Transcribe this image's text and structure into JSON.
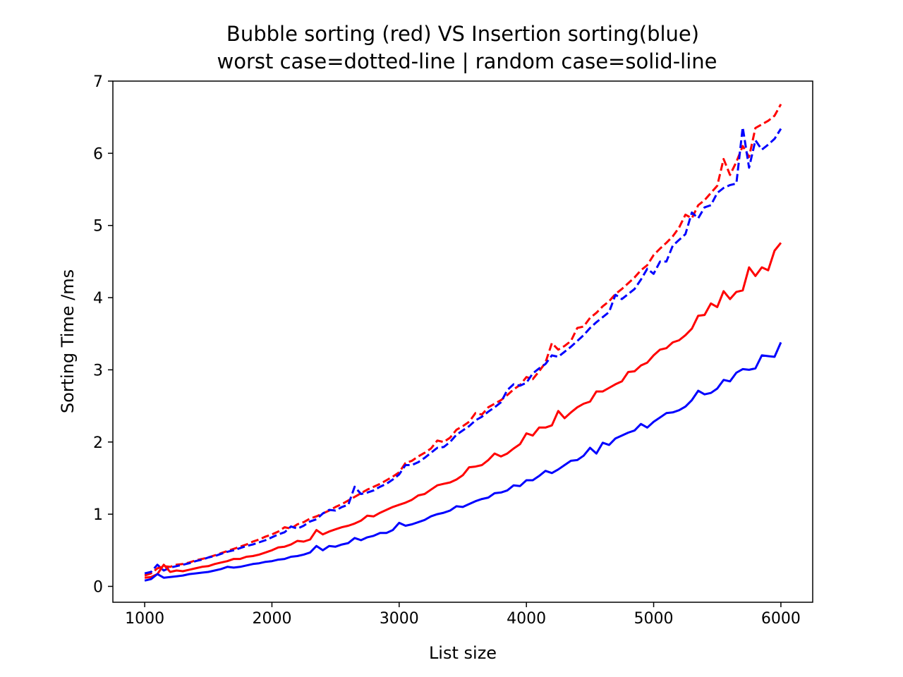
{
  "chart_data": {
    "type": "line",
    "title": "Bubble sorting (red) VS Insertion sorting(blue)",
    "subtitle": "worst case=dotted-line | random case=solid-line",
    "xlabel": "List size",
    "ylabel": "Sorting Time /ms",
    "xlim": [
      750,
      6250
    ],
    "ylim": [
      -0.22,
      7
    ],
    "xticks": [
      1000,
      2000,
      3000,
      4000,
      5000,
      6000
    ],
    "yticks": [
      0,
      1,
      2,
      3,
      4,
      5,
      6,
      7
    ],
    "xtick_labels": [
      "1000",
      "2000",
      "3000",
      "4000",
      "5000",
      "6000"
    ],
    "ytick_labels": [
      "0",
      "1",
      "2",
      "3",
      "4",
      "5",
      "6",
      "7"
    ],
    "grid": false,
    "legend": "none",
    "x": [
      1000,
      1050,
      1100,
      1150,
      1200,
      1250,
      1300,
      1350,
      1400,
      1450,
      1500,
      1550,
      1600,
      1650,
      1700,
      1750,
      1800,
      1850,
      1900,
      1950,
      2000,
      2050,
      2100,
      2150,
      2200,
      2250,
      2300,
      2350,
      2400,
      2450,
      2500,
      2550,
      2600,
      2650,
      2700,
      2750,
      2800,
      2850,
      2900,
      2950,
      3000,
      3050,
      3100,
      3150,
      3200,
      3250,
      3300,
      3350,
      3400,
      3450,
      3500,
      3550,
      3600,
      3650,
      3700,
      3750,
      3800,
      3850,
      3900,
      3950,
      4000,
      4050,
      4100,
      4150,
      4200,
      4250,
      4300,
      4350,
      4400,
      4450,
      4500,
      4550,
      4600,
      4650,
      4700,
      4750,
      4800,
      4850,
      4900,
      4950,
      5000,
      5050,
      5100,
      5150,
      5200,
      5250,
      5300,
      5350,
      5400,
      5450,
      5500,
      5550,
      5600,
      5650,
      5700,
      5750,
      5800,
      5850,
      5900,
      5950,
      6000
    ],
    "series": [
      {
        "color": "#ff0000",
        "linestyle": "dashed",
        "values": [
          0.15,
          0.18,
          0.25,
          0.28,
          0.27,
          0.3,
          0.31,
          0.33,
          0.36,
          0.38,
          0.4,
          0.43,
          0.46,
          0.49,
          0.52,
          0.55,
          0.58,
          0.62,
          0.65,
          0.69,
          0.72,
          0.76,
          0.82,
          0.8,
          0.86,
          0.89,
          0.94,
          0.97,
          1.01,
          1.05,
          1.1,
          1.14,
          1.19,
          1.24,
          1.29,
          1.34,
          1.38,
          1.42,
          1.47,
          1.52,
          1.58,
          1.71,
          1.74,
          1.8,
          1.85,
          1.91,
          2.02,
          2.0,
          2.06,
          2.17,
          2.22,
          2.28,
          2.4,
          2.38,
          2.48,
          2.53,
          2.58,
          2.65,
          2.73,
          2.79,
          2.9,
          2.87,
          2.98,
          3.1,
          3.37,
          3.28,
          3.33,
          3.4,
          3.58,
          3.6,
          3.72,
          3.79,
          3.88,
          3.95,
          4.05,
          4.12,
          4.2,
          4.28,
          4.38,
          4.45,
          4.59,
          4.68,
          4.76,
          4.85,
          4.97,
          5.15,
          5.1,
          5.28,
          5.35,
          5.45,
          5.55,
          5.92,
          5.7,
          5.88,
          6.1,
          5.95,
          6.35,
          6.4,
          6.45,
          6.52,
          6.68
        ]
      },
      {
        "color": "#0000ff",
        "linestyle": "dashed",
        "values": [
          0.18,
          0.2,
          0.3,
          0.22,
          0.26,
          0.28,
          0.3,
          0.32,
          0.35,
          0.37,
          0.4,
          0.42,
          0.45,
          0.48,
          0.5,
          0.53,
          0.56,
          0.58,
          0.61,
          0.64,
          0.68,
          0.72,
          0.75,
          0.83,
          0.8,
          0.84,
          0.9,
          0.93,
          1.01,
          1.06,
          1.05,
          1.1,
          1.13,
          1.38,
          1.28,
          1.3,
          1.33,
          1.38,
          1.42,
          1.48,
          1.55,
          1.68,
          1.68,
          1.72,
          1.78,
          1.85,
          1.92,
          1.93,
          2.0,
          2.1,
          2.16,
          2.22,
          2.3,
          2.35,
          2.42,
          2.48,
          2.55,
          2.72,
          2.8,
          2.78,
          2.82,
          2.95,
          3.02,
          3.08,
          3.2,
          3.18,
          3.25,
          3.32,
          3.4,
          3.48,
          3.58,
          3.66,
          3.73,
          3.8,
          4.04,
          3.98,
          4.05,
          4.12,
          4.25,
          4.4,
          4.33,
          4.5,
          4.5,
          4.72,
          4.8,
          4.88,
          5.18,
          5.1,
          5.25,
          5.28,
          5.45,
          5.52,
          5.56,
          5.58,
          6.36,
          5.8,
          6.18,
          6.05,
          6.12,
          6.2,
          6.34
        ]
      },
      {
        "color": "#ff0000",
        "linestyle": "solid",
        "values": [
          0.12,
          0.13,
          0.17,
          0.3,
          0.2,
          0.22,
          0.21,
          0.23,
          0.25,
          0.27,
          0.28,
          0.31,
          0.33,
          0.35,
          0.38,
          0.38,
          0.41,
          0.42,
          0.44,
          0.47,
          0.5,
          0.54,
          0.55,
          0.58,
          0.63,
          0.62,
          0.65,
          0.78,
          0.72,
          0.76,
          0.79,
          0.82,
          0.84,
          0.87,
          0.91,
          0.98,
          0.97,
          1.02,
          1.06,
          1.1,
          1.13,
          1.16,
          1.2,
          1.26,
          1.28,
          1.34,
          1.4,
          1.42,
          1.44,
          1.48,
          1.54,
          1.65,
          1.66,
          1.68,
          1.75,
          1.84,
          1.8,
          1.84,
          1.91,
          1.97,
          2.12,
          2.09,
          2.2,
          2.2,
          2.23,
          2.43,
          2.33,
          2.41,
          2.48,
          2.53,
          2.56,
          2.7,
          2.7,
          2.75,
          2.8,
          2.84,
          2.97,
          2.98,
          3.06,
          3.1,
          3.2,
          3.28,
          3.3,
          3.38,
          3.41,
          3.48,
          3.57,
          3.75,
          3.76,
          3.92,
          3.87,
          4.09,
          3.98,
          4.08,
          4.1,
          4.42,
          4.3,
          4.42,
          4.38,
          4.65,
          4.76
        ]
      },
      {
        "color": "#0000ff",
        "linestyle": "solid",
        "values": [
          0.08,
          0.1,
          0.17,
          0.12,
          0.13,
          0.14,
          0.15,
          0.17,
          0.18,
          0.19,
          0.2,
          0.22,
          0.24,
          0.27,
          0.26,
          0.27,
          0.29,
          0.31,
          0.32,
          0.34,
          0.35,
          0.37,
          0.38,
          0.41,
          0.42,
          0.44,
          0.47,
          0.56,
          0.5,
          0.56,
          0.55,
          0.58,
          0.6,
          0.67,
          0.64,
          0.68,
          0.7,
          0.74,
          0.74,
          0.78,
          0.88,
          0.84,
          0.86,
          0.89,
          0.92,
          0.97,
          1.0,
          1.02,
          1.05,
          1.11,
          1.1,
          1.14,
          1.18,
          1.21,
          1.23,
          1.29,
          1.3,
          1.33,
          1.4,
          1.39,
          1.47,
          1.47,
          1.53,
          1.6,
          1.57,
          1.62,
          1.68,
          1.74,
          1.75,
          1.81,
          1.92,
          1.84,
          1.99,
          1.96,
          2.05,
          2.09,
          2.13,
          2.16,
          2.25,
          2.2,
          2.28,
          2.34,
          2.4,
          2.41,
          2.44,
          2.49,
          2.58,
          2.71,
          2.66,
          2.68,
          2.74,
          2.86,
          2.84,
          2.96,
          3.01,
          3.0,
          3.02,
          3.2,
          3.19,
          3.18,
          3.38
        ]
      }
    ]
  }
}
